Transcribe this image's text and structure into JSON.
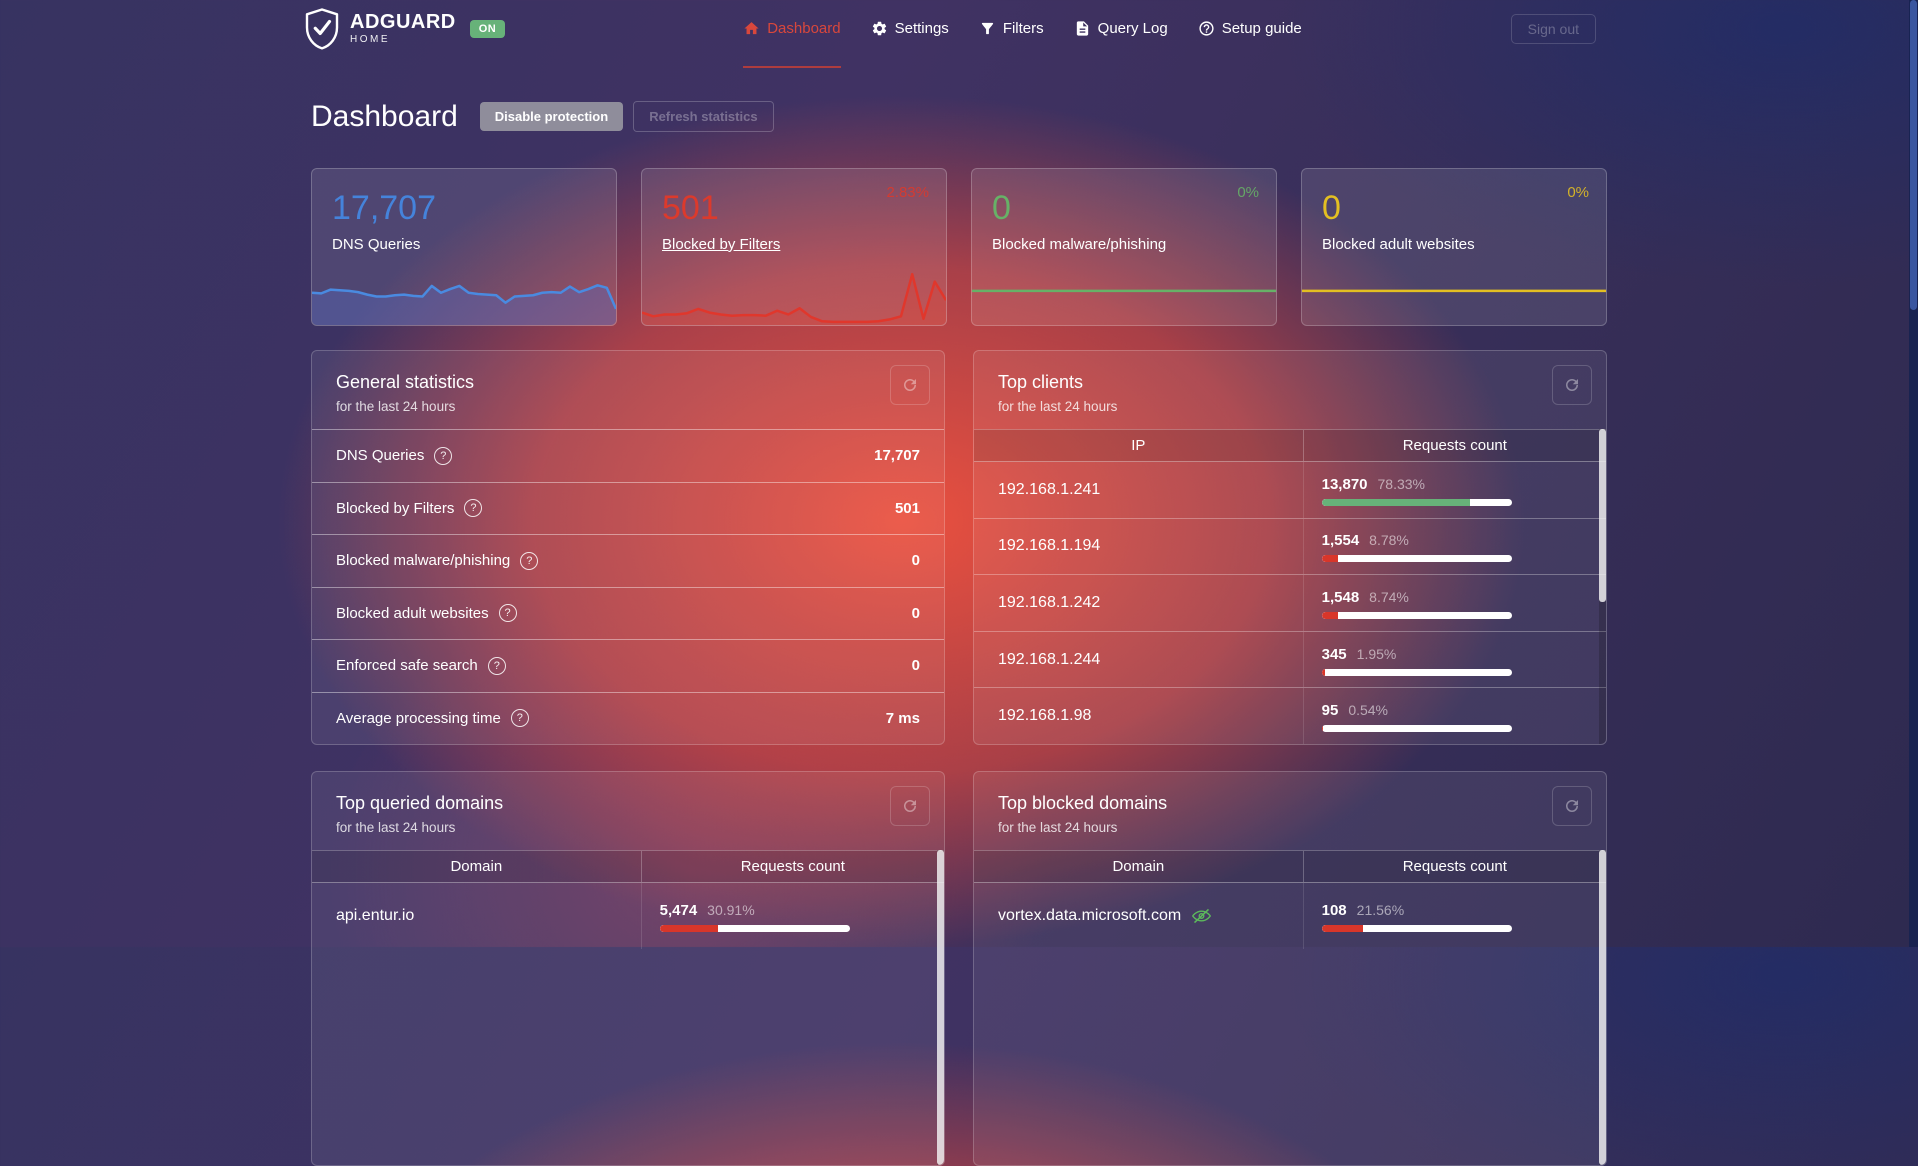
{
  "icons": {
    "help": "?"
  },
  "header": {
    "brand": {
      "name": "ADGUARD",
      "sub": "HOME",
      "status_badge": "ON"
    },
    "nav": [
      {
        "label": "Dashboard"
      },
      {
        "label": "Settings"
      },
      {
        "label": "Filters"
      },
      {
        "label": "Query Log"
      },
      {
        "label": "Setup guide"
      }
    ],
    "sign_out_label": "Sign out"
  },
  "page": {
    "title": "Dashboard",
    "disable_protection_label": "Disable protection",
    "refresh_statistics_label": "Refresh statistics"
  },
  "stat_cards": [
    {
      "value": "17,707",
      "label": "DNS Queries",
      "percent": "",
      "chart_color": "#4a8ae0",
      "chart_fill": "rgba(86,103,182,0.45)",
      "sparkline": [
        52,
        51,
        57,
        56,
        55,
        53,
        49,
        46,
        46,
        48,
        49,
        47,
        46,
        63,
        52,
        58,
        63,
        52,
        50,
        49,
        48,
        36,
        46,
        47,
        48,
        52,
        53,
        52,
        62,
        53,
        58,
        64,
        60,
        26
      ]
    },
    {
      "value": "501",
      "label": "Blocked by Filters",
      "percent": "2.83%",
      "chart_color": "#e0372c",
      "chart_fill": "rgba(224,60,48,0.28)",
      "sparkline": [
        20,
        14,
        17,
        17,
        19,
        26,
        20,
        17,
        15,
        16,
        16,
        15,
        23,
        17,
        27,
        13,
        6,
        5,
        5,
        5,
        5,
        6,
        9,
        14,
        82,
        10,
        70,
        40
      ]
    },
    {
      "value": "0",
      "label": "Blocked malware/phishing",
      "percent": "0%",
      "chart_color": "#67b167",
      "chart_fill": null,
      "sparkline": [
        55,
        55
      ]
    },
    {
      "value": "0",
      "label": "Blocked adult websites",
      "percent": "0%",
      "chart_color": "#e3bf22",
      "chart_fill": null,
      "sparkline": [
        55,
        55
      ]
    }
  ],
  "general_statistics": {
    "title": "General statistics",
    "subtitle": "for the last 24 hours",
    "rows": [
      {
        "label": "DNS Queries",
        "value": "17,707"
      },
      {
        "label": "Blocked by Filters",
        "value": "501"
      },
      {
        "label": "Blocked malware/phishing",
        "value": "0"
      },
      {
        "label": "Blocked adult websites",
        "value": "0"
      },
      {
        "label": "Enforced safe search",
        "value": "0"
      },
      {
        "label": "Average processing time",
        "value": "7 ms"
      }
    ]
  },
  "top_clients": {
    "title": "Top clients",
    "subtitle": "for the last 24 hours",
    "columns": [
      "IP",
      "Requests count"
    ],
    "rows": [
      {
        "ip": "192.168.1.241",
        "count": "13,870",
        "percent": "78.33%",
        "bar_pct": 78.33,
        "bar_color": "#67b279"
      },
      {
        "ip": "192.168.1.194",
        "count": "1,554",
        "percent": "8.78%",
        "bar_pct": 8.78,
        "bar_color": "#d8362a"
      },
      {
        "ip": "192.168.1.242",
        "count": "1,548",
        "percent": "8.74%",
        "bar_pct": 8.74,
        "bar_color": "#d8362a"
      },
      {
        "ip": "192.168.1.244",
        "count": "345",
        "percent": "1.95%",
        "bar_pct": 1.95,
        "bar_color": "#d8362a"
      },
      {
        "ip": "192.168.1.98",
        "count": "95",
        "percent": "0.54%",
        "bar_pct": 0.54,
        "bar_color": "#d8362a"
      }
    ]
  },
  "top_queried_domains": {
    "title": "Top queried domains",
    "subtitle": "for the last 24 hours",
    "columns": [
      "Domain",
      "Requests count"
    ],
    "rows": [
      {
        "domain": "api.entur.io",
        "count": "5,474",
        "percent": "30.91%",
        "bar_pct": 30.91,
        "bar_color": "#d8362a"
      }
    ]
  },
  "top_blocked_domains": {
    "title": "Top blocked domains",
    "subtitle": "for the last 24 hours",
    "columns": [
      "Domain",
      "Requests count"
    ],
    "rows": [
      {
        "domain": "vortex.data.microsoft.com",
        "blocked_icon": true,
        "count": "108",
        "percent": "21.56%",
        "bar_pct": 21.56,
        "bar_color": "#d8362a"
      }
    ]
  }
}
